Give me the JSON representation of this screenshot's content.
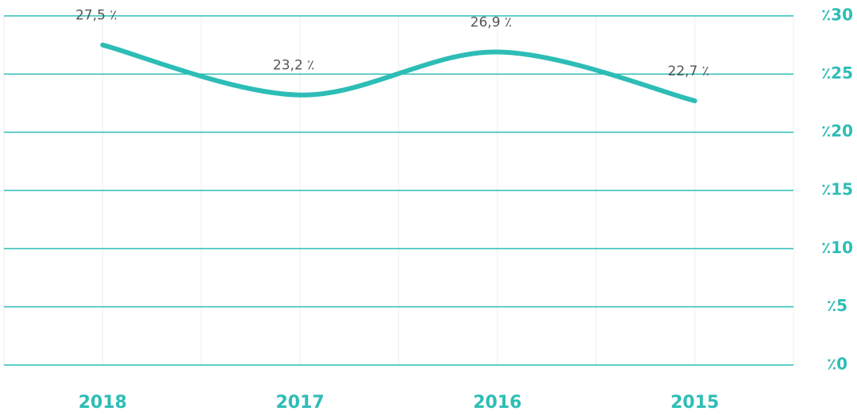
{
  "chart_data": {
    "type": "line",
    "categories": [
      "2018",
      "2017",
      "2016",
      "2015"
    ],
    "series": [
      {
        "color": "#2dbdb6",
        "values": [
          27.5,
          23.2,
          26.9,
          22.7
        ],
        "value_labels": [
          "27,5 ٪",
          "23,2 ٪",
          "26,9 ٪",
          "22,7 ٪"
        ]
      }
    ],
    "ylim": [
      0,
      30
    ],
    "yticks": [
      {
        "value": 0,
        "label": "٪0"
      },
      {
        "value": 5,
        "label": "٪5"
      },
      {
        "value": 10,
        "label": "٪10"
      },
      {
        "value": 15,
        "label": "٪15"
      },
      {
        "value": 20,
        "label": "٪20"
      },
      {
        "value": 25,
        "label": "٪25"
      },
      {
        "value": 30,
        "label": "٪30"
      }
    ],
    "grid": true
  }
}
